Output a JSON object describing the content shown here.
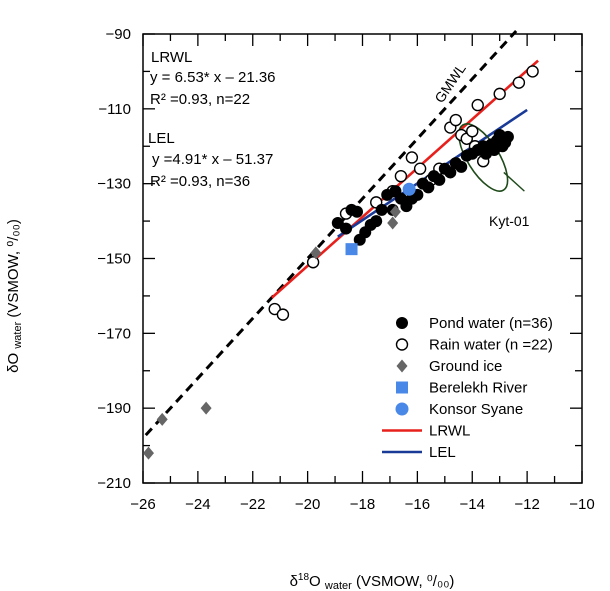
{
  "chart_data": {
    "type": "scatter",
    "xlabel": {
      "main": "δ",
      "sup": "18",
      "rest": "O",
      "sub": "water",
      "unit": " (VSMOW, ⁰/₀₀)"
    },
    "ylabel": {
      "main": "δO",
      "sub": "water",
      "unit": " (VSMOW, ⁰/₀₀)"
    },
    "xlim": [
      -26,
      -10
    ],
    "ylim": [
      -210,
      -90
    ],
    "xticks": [
      -26,
      -24,
      -22,
      -20,
      -18,
      -16,
      -14,
      -12,
      -10
    ],
    "yticks": [
      -90,
      -110,
      -130,
      -150,
      -170,
      -190,
      -210
    ],
    "xtick_labels": [
      "−26",
      "−24",
      "−22",
      "−20",
      "−18",
      "−16",
      "−14",
      "−12",
      "−10"
    ],
    "ytick_labels": [
      "−90",
      "−110",
      "−130",
      "−150",
      "−170",
      "−190",
      "−210"
    ],
    "grid": false,
    "legend_position": "bottom-right",
    "annotations": {
      "lrwl_title": "LRWL",
      "lrwl_eq": "y = 6.53* x – 21.36",
      "lrwl_r2": "R² =0.93, n=22",
      "lel_title": "LEL",
      "lel_eq": "y =4.91* x – 51.37",
      "lel_r2": "R² =0.93, n=36",
      "gmwl": "GMWL",
      "kyt": "Kyt-01"
    },
    "lines": [
      {
        "name": "GMWL",
        "slope": 8,
        "intercept": 10,
        "x_range": [
          -25.9,
          -12.4
        ],
        "color": "#000000",
        "style": "dashed"
      },
      {
        "name": "LRWL",
        "slope": 6.53,
        "intercept": -21.36,
        "x_range": [
          -21.3,
          -11.6
        ],
        "color": "#e8201c",
        "style": "solid"
      },
      {
        "name": "LEL",
        "slope": 4.91,
        "intercept": -51.37,
        "x_range": [
          -18.9,
          -12.0
        ],
        "color": "#1a3a98",
        "style": "solid"
      }
    ],
    "kyt_ellipse": {
      "cx": -13.6,
      "cy": -123,
      "rx": 1.4,
      "ry": 4.2,
      "angle_deg": -32
    },
    "series": [
      {
        "name": "Pond water (n=36)",
        "marker": "filled-circle",
        "color": "#000000",
        "points": [
          [
            -18.9,
            -140.5
          ],
          [
            -18.6,
            -142
          ],
          [
            -18.4,
            -137
          ],
          [
            -18.2,
            -137.5
          ],
          [
            -18.1,
            -145
          ],
          [
            -17.9,
            -143
          ],
          [
            -17.7,
            -141
          ],
          [
            -17.5,
            -140
          ],
          [
            -17.3,
            -137
          ],
          [
            -17.1,
            -133
          ],
          [
            -16.9,
            -137
          ],
          [
            -16.8,
            -132
          ],
          [
            -16.6,
            -134
          ],
          [
            -16.4,
            -136
          ],
          [
            -16.2,
            -134
          ],
          [
            -16.0,
            -133
          ],
          [
            -15.8,
            -130
          ],
          [
            -15.6,
            -131
          ],
          [
            -15.4,
            -128
          ],
          [
            -15.2,
            -129
          ],
          [
            -15.0,
            -126
          ],
          [
            -14.8,
            -127
          ],
          [
            -14.6,
            -124.5
          ],
          [
            -14.4,
            -125.5
          ],
          [
            -14.2,
            -122.5
          ],
          [
            -14.0,
            -122
          ],
          [
            -13.8,
            -121
          ],
          [
            -13.6,
            -120
          ],
          [
            -13.5,
            -122
          ],
          [
            -13.3,
            -119.5
          ],
          [
            -13.2,
            -121
          ],
          [
            -13.1,
            -118.5
          ],
          [
            -13.0,
            -117
          ],
          [
            -12.9,
            -120
          ],
          [
            -12.8,
            -119
          ],
          [
            -12.7,
            -117.5
          ]
        ]
      },
      {
        "name": "Rain water (n =22)",
        "marker": "open-circle",
        "color": "#000000",
        "points": [
          [
            -21.2,
            -163.5
          ],
          [
            -20.9,
            -165
          ],
          [
            -19.8,
            -151
          ],
          [
            -18.6,
            -138
          ],
          [
            -17.5,
            -135
          ],
          [
            -16.9,
            -132
          ],
          [
            -16.6,
            -128
          ],
          [
            -16.2,
            -123
          ],
          [
            -15.9,
            -126
          ],
          [
            -15.5,
            -129
          ],
          [
            -15.2,
            -126
          ],
          [
            -14.8,
            -115
          ],
          [
            -14.6,
            -113
          ],
          [
            -14.4,
            -117
          ],
          [
            -14.2,
            -118
          ],
          [
            -14.0,
            -116
          ],
          [
            -13.9,
            -120
          ],
          [
            -13.8,
            -109
          ],
          [
            -13.6,
            -124
          ],
          [
            -13.0,
            -106
          ],
          [
            -12.3,
            -103
          ],
          [
            -11.8,
            -100
          ]
        ]
      },
      {
        "name": "Ground ice",
        "marker": "diamond",
        "color": "#666666",
        "points": [
          [
            -25.8,
            -202
          ],
          [
            -25.3,
            -193
          ],
          [
            -23.7,
            -190
          ],
          [
            -19.7,
            -148.5
          ],
          [
            -16.9,
            -140.5
          ],
          [
            -16.8,
            -137.5
          ]
        ]
      },
      {
        "name": "Berelekh River",
        "marker": "square",
        "color": "#4a88e8",
        "points": [
          [
            -18.4,
            -147.5
          ]
        ]
      },
      {
        "name": "Konsor Syane",
        "marker": "blue-circle",
        "color": "#4a88e8",
        "points": [
          [
            -16.3,
            -131.5
          ]
        ]
      }
    ],
    "legend": [
      {
        "label": "Pond water (n=36)",
        "marker": "filled-circle",
        "color": "#000000"
      },
      {
        "label": "Rain water (n =22)",
        "marker": "open-circle",
        "color": "#000000"
      },
      {
        "label": "Ground ice",
        "marker": "diamond",
        "color": "#666666"
      },
      {
        "label": "Berelekh River",
        "marker": "square",
        "color": "#4a88e8"
      },
      {
        "label": "Konsor Syane",
        "marker": "blue-circle",
        "color": "#4a88e8"
      },
      {
        "label": "LRWL",
        "marker": "line",
        "color": "#e8201c"
      },
      {
        "label": "LEL",
        "marker": "line",
        "color": "#1a3a98"
      }
    ]
  }
}
